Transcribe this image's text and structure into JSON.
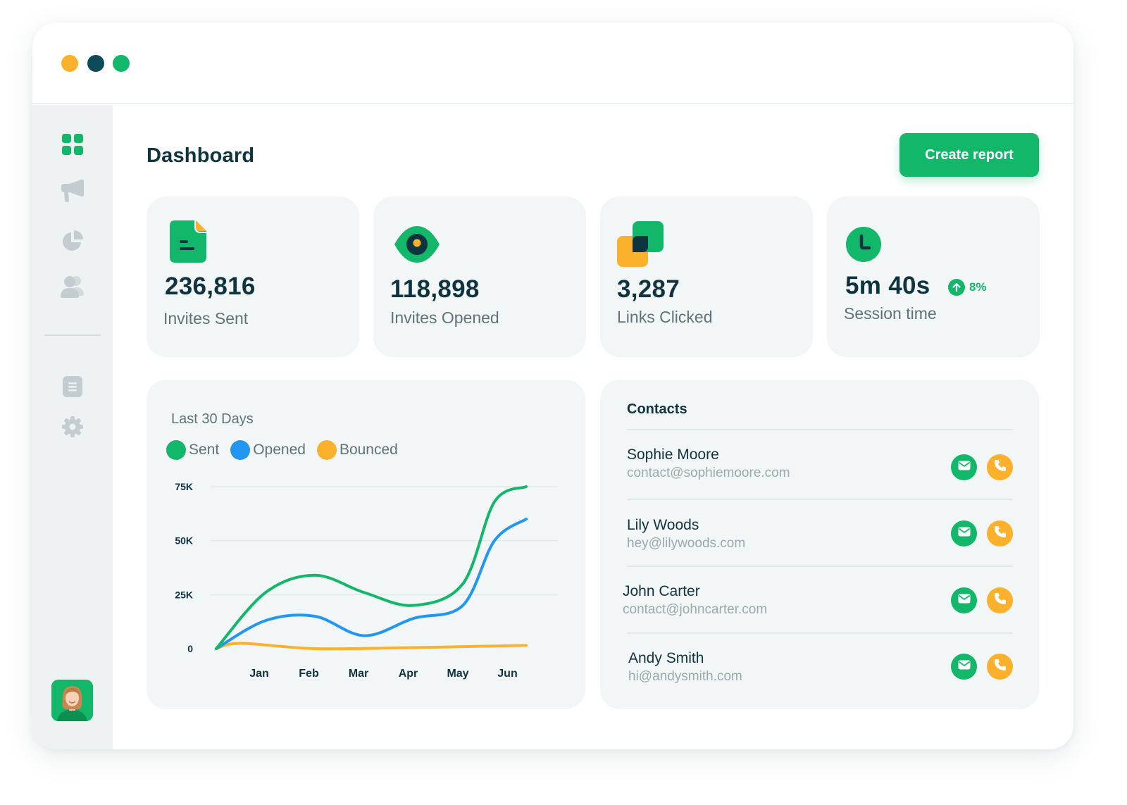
{
  "colors": {
    "accent": "#12b76a",
    "dark": "#0f3440",
    "amber": "#fbb12b",
    "blue": "#2196f3",
    "window_dots": [
      "#fbb12b",
      "#0f4a5a",
      "#12b76a"
    ]
  },
  "sidebar": {
    "nav": [
      {
        "icon": "grid-icon",
        "active": true
      },
      {
        "icon": "megaphone-icon",
        "active": false
      },
      {
        "icon": "pie-chart-icon",
        "active": false
      },
      {
        "icon": "users-icon",
        "active": false
      },
      {
        "icon": "document-icon",
        "active": false
      },
      {
        "icon": "gear-icon",
        "active": false
      }
    ],
    "avatar": "user-avatar"
  },
  "header": {
    "title": "Dashboard",
    "create_button": "Create report"
  },
  "stats": [
    {
      "icon": "document-icon",
      "value": "236,816",
      "label": "Invites Sent"
    },
    {
      "icon": "eye-icon",
      "value": "118,898",
      "label": "Invites Opened"
    },
    {
      "icon": "overlap-squares-icon",
      "value": "3,287",
      "label": "Links Clicked"
    },
    {
      "icon": "clock-icon",
      "value": "5m 40s",
      "label": "Session time",
      "trend": "8%",
      "trend_direction": "up"
    }
  ],
  "chart_data": {
    "type": "line",
    "title": "Last 30 Days",
    "categories": [
      "Jan",
      "Feb",
      "Mar",
      "Apr",
      "May",
      "Jun"
    ],
    "yticks": [
      "0",
      "25K",
      "50K",
      "75K"
    ],
    "ylim": [
      0,
      75000
    ],
    "grid": true,
    "legend_position": "top-left",
    "series": [
      {
        "name": "Sent",
        "color": "#12b76a",
        "x": [
          0.0,
          1.0,
          2.0,
          3.0,
          4.0,
          5.0,
          5.5,
          6.0
        ],
        "values": [
          0,
          26000,
          34000,
          26000,
          20000,
          30000,
          68000,
          75000
        ]
      },
      {
        "name": "Opened",
        "color": "#2196f3",
        "x": [
          0.0,
          1.0,
          2.0,
          3.0,
          4.0,
          5.0,
          5.5,
          6.0
        ],
        "values": [
          0,
          13000,
          15000,
          6000,
          14000,
          20000,
          50000,
          60000
        ]
      },
      {
        "name": "Bounced",
        "color": "#fbb12b",
        "x": [
          0.0,
          0.5,
          2.0,
          4.0,
          6.0
        ],
        "values": [
          0,
          2500,
          0,
          500,
          1500
        ]
      }
    ]
  },
  "contacts": {
    "title": "Contacts",
    "items": [
      {
        "name": "Sophie Moore",
        "email": "contact@sophiemoore.com"
      },
      {
        "name": "Lily Woods",
        "email": "hey@lilywoods.com"
      },
      {
        "name": "John Carter",
        "email": "contact@johncarter.com"
      },
      {
        "name": "Andy Smith",
        "email": "hi@andysmith.com"
      }
    ]
  }
}
